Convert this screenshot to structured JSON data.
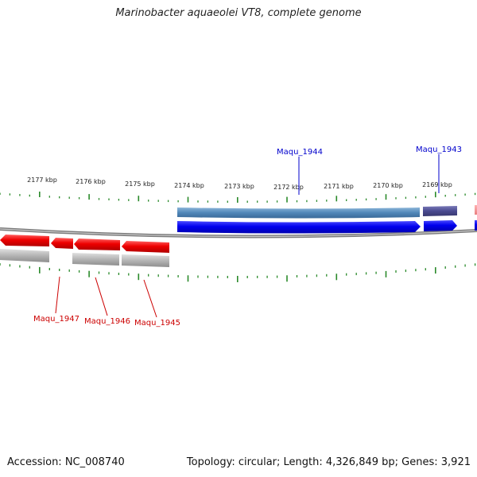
{
  "title": "Marinobacter aquaeolei VT8, complete genome",
  "accession_text": "Accession: NC_008740",
  "summary_text": "Topology: circular; Length: 4,326,849 bp; Genes: 3,921",
  "scale_labels": [
    "2177 kbp",
    "2176 kbp",
    "2175 kbp",
    "2174 kbp",
    "2173 kbp",
    "2172 kbp",
    "2171 kbp",
    "2170 kbp",
    "2169 kbp"
  ],
  "genes": {
    "forward": [
      {
        "label": "Maqu_1944",
        "color": "#0000cc"
      },
      {
        "label": "Maqu_1943",
        "color": "#0000cc"
      }
    ],
    "reverse": [
      {
        "label": "Maqu_1947",
        "color": "#cc0000"
      },
      {
        "label": "Maqu_1946",
        "color": "#cc0000"
      },
      {
        "label": "Maqu_1945",
        "color": "#cc0000"
      }
    ]
  },
  "colors": {
    "forward_gene": "#0000ee",
    "reverse_gene": "#ee0000",
    "forward_feature": "#4f86b8",
    "forward_feature_alt": "#4a4a90",
    "reverse_feature": "#b4b4b4",
    "backbone": "#808080",
    "ticks": "#2a8a2a"
  }
}
